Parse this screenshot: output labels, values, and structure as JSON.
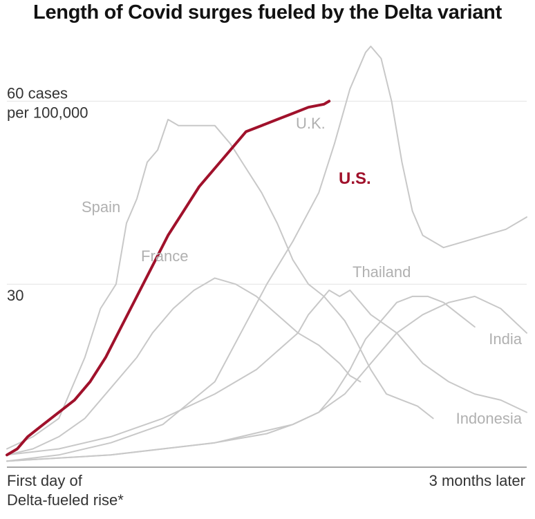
{
  "chart_data": {
    "type": "line",
    "title": "Length of Covid surges fueled by the Delta variant",
    "ylabel": "",
    "ylim": [
      0,
      75
    ],
    "xlim": [
      0,
      100
    ],
    "grid": true,
    "y_ticks": [
      {
        "value": 60,
        "lines": [
          "60 cases",
          "per 100,000"
        ]
      },
      {
        "value": 30,
        "lines": [
          "30"
        ]
      }
    ],
    "x_ticks": [
      {
        "value": 0,
        "lines": [
          "First day of",
          "Delta-fueled rise*"
        ],
        "anchor": "start"
      },
      {
        "value": 100,
        "lines": [
          "3 months later"
        ],
        "anchor": "end"
      }
    ],
    "colors": {
      "highlight": "#a0112b",
      "other": "#c8c8c8",
      "grid": "#e2e2e2",
      "axis": "#888888"
    },
    "series": [
      {
        "name": "U.S.",
        "highlight": true,
        "x": [
          0,
          2,
          4,
          7,
          10,
          13,
          16,
          19,
          22,
          25,
          28,
          31,
          34,
          37,
          40,
          43,
          46,
          49,
          52,
          55,
          58,
          61,
          62
        ],
        "y": [
          2,
          3,
          5,
          7,
          9,
          11,
          14,
          18,
          23,
          28,
          33,
          38,
          42,
          46,
          49,
          52,
          55,
          56,
          57,
          58,
          59,
          59.5,
          60
        ]
      },
      {
        "name": "U.K.",
        "x": [
          0,
          10,
          20,
          30,
          40,
          45,
          50,
          55,
          60,
          63,
          66,
          69,
          70,
          72,
          74,
          76,
          78,
          80,
          84,
          88,
          92,
          96,
          100
        ],
        "y": [
          1,
          2,
          4,
          7,
          14,
          22,
          30,
          37,
          45,
          53,
          62,
          68,
          69,
          67,
          60,
          50,
          42,
          38,
          36,
          37,
          38,
          39,
          41
        ]
      },
      {
        "name": "Spain",
        "x": [
          0,
          5,
          10,
          12,
          15,
          18,
          21,
          23,
          25,
          27,
          29,
          31,
          33,
          36,
          40,
          43,
          46,
          49,
          52,
          55,
          58,
          61,
          63,
          65,
          67,
          70,
          73,
          76,
          79,
          82
        ],
        "y": [
          3,
          5,
          8,
          12,
          18,
          26,
          30,
          40,
          44,
          50,
          52,
          57,
          56,
          56,
          56,
          53,
          49,
          45,
          40,
          34,
          30,
          28,
          26,
          24,
          21,
          16,
          12,
          11,
          10,
          8
        ]
      },
      {
        "name": "France",
        "x": [
          0,
          5,
          10,
          15,
          20,
          25,
          28,
          32,
          36,
          40,
          44,
          48,
          52,
          56,
          60,
          64,
          66,
          68
        ],
        "y": [
          2,
          3,
          5,
          8,
          13,
          18,
          22,
          26,
          29,
          31,
          30,
          28,
          25,
          22,
          20,
          17,
          15,
          14
        ]
      },
      {
        "name": "Thailand",
        "x": [
          0,
          10,
          20,
          30,
          40,
          48,
          52,
          56,
          58,
          60,
          62,
          64,
          66,
          70,
          75,
          80,
          85,
          90,
          95,
          100
        ],
        "y": [
          2,
          3,
          5,
          8,
          12,
          16,
          19,
          22,
          25,
          27,
          29,
          28,
          29,
          25,
          22,
          17,
          14,
          12,
          11,
          9
        ]
      },
      {
        "name": "India",
        "x": [
          0,
          10,
          20,
          30,
          40,
          50,
          55,
          60,
          65,
          70,
          75,
          80,
          85,
          90,
          95,
          100
        ],
        "y": [
          1,
          1.5,
          2,
          3,
          4,
          6,
          7,
          9,
          12,
          17,
          22,
          25,
          27,
          28,
          26,
          22
        ]
      },
      {
        "name": "Indonesia",
        "x": [
          0,
          10,
          20,
          30,
          40,
          50,
          55,
          60,
          63,
          66,
          69,
          72,
          75,
          78,
          81,
          84,
          87,
          90
        ],
        "y": [
          1,
          1.5,
          2,
          3,
          4,
          5.5,
          7,
          9,
          12,
          16,
          21,
          24,
          27,
          28,
          28,
          27,
          25,
          23
        ]
      }
    ],
    "series_labels": [
      {
        "name": "U.S.",
        "text": "U.S."
      },
      {
        "name": "U.K.",
        "text": "U.K."
      },
      {
        "name": "Spain",
        "text": "Spain"
      },
      {
        "name": "France",
        "text": "France"
      },
      {
        "name": "Thailand",
        "text": "Thailand"
      },
      {
        "name": "India",
        "text": "India"
      },
      {
        "name": "Indonesia",
        "text": "Indonesia"
      }
    ]
  }
}
